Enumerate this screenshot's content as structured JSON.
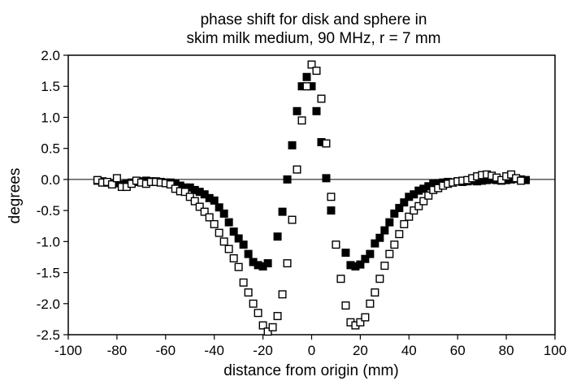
{
  "chart_data": {
    "type": "scatter",
    "title": [
      "phase shift for disk and sphere in",
      "skim milk medium, 90 MHz, r = 7 mm"
    ],
    "xlabel": "distance from origin (mm)",
    "ylabel": "degrees",
    "xlim": [
      -100,
      100
    ],
    "ylim": [
      -2.5,
      2.0
    ],
    "xticks": [
      -100,
      -80,
      -60,
      -40,
      -20,
      0,
      20,
      40,
      60,
      80,
      100
    ],
    "yticks": [
      2.0,
      1.5,
      1.0,
      0.5,
      0.0,
      -0.5,
      -1.0,
      -1.5,
      -2.0,
      -2.5
    ],
    "ytick_labels": [
      "2.0",
      "1.5",
      "1.0",
      "0.5",
      "0.0",
      "-0.5",
      "-1.0",
      "-1.5",
      "-2.0",
      "-2.5"
    ],
    "reference_line_y": 0,
    "grid": false,
    "legend": "none",
    "series": [
      {
        "marker": "filled-square",
        "color": "#000000",
        "points": [
          [
            -88,
            -0.02
          ],
          [
            -86,
            -0.03
          ],
          [
            -84,
            -0.05
          ],
          [
            -82,
            -0.07
          ],
          [
            -80,
            -0.06
          ],
          [
            -78,
            -0.08
          ],
          [
            -76,
            -0.07
          ],
          [
            -74,
            -0.05
          ],
          [
            -72,
            -0.04
          ],
          [
            -70,
            -0.03
          ],
          [
            -68,
            -0.02
          ],
          [
            -66,
            -0.03
          ],
          [
            -64,
            -0.03
          ],
          [
            -62,
            -0.04
          ],
          [
            -60,
            -0.05
          ],
          [
            -58,
            -0.05
          ],
          [
            -56,
            -0.07
          ],
          [
            -54,
            -0.1
          ],
          [
            -52,
            -0.13
          ],
          [
            -50,
            -0.13
          ],
          [
            -48,
            -0.17
          ],
          [
            -46,
            -0.2
          ],
          [
            -44,
            -0.24
          ],
          [
            -42,
            -0.3
          ],
          [
            -40,
            -0.34
          ],
          [
            -38,
            -0.45
          ],
          [
            -36,
            -0.55
          ],
          [
            -34,
            -0.69
          ],
          [
            -32,
            -0.84
          ],
          [
            -30,
            -0.95
          ],
          [
            -28,
            -1.05
          ],
          [
            -26,
            -1.2
          ],
          [
            -24,
            -1.33
          ],
          [
            -22,
            -1.38
          ],
          [
            -20,
            -1.4
          ],
          [
            -18,
            -1.35
          ],
          [
            -14,
            -0.92
          ],
          [
            -12,
            -0.52
          ],
          [
            -10,
            0.0
          ],
          [
            -8,
            0.55
          ],
          [
            -6,
            1.1
          ],
          [
            -4,
            1.5
          ],
          [
            -2,
            1.65
          ],
          [
            0,
            1.5
          ],
          [
            2,
            1.1
          ],
          [
            4,
            0.6
          ],
          [
            6,
            0.02
          ],
          [
            8,
            -0.5
          ],
          [
            14,
            -1.18
          ],
          [
            16,
            -1.38
          ],
          [
            18,
            -1.4
          ],
          [
            20,
            -1.37
          ],
          [
            22,
            -1.28
          ],
          [
            24,
            -1.2
          ],
          [
            26,
            -1.03
          ],
          [
            28,
            -0.94
          ],
          [
            30,
            -0.82
          ],
          [
            32,
            -0.69
          ],
          [
            34,
            -0.55
          ],
          [
            36,
            -0.46
          ],
          [
            38,
            -0.37
          ],
          [
            40,
            -0.28
          ],
          [
            42,
            -0.24
          ],
          [
            44,
            -0.18
          ],
          [
            46,
            -0.15
          ],
          [
            48,
            -0.11
          ],
          [
            50,
            -0.07
          ],
          [
            52,
            -0.06
          ],
          [
            54,
            -0.05
          ],
          [
            56,
            -0.04
          ],
          [
            58,
            -0.05
          ],
          [
            60,
            -0.03
          ],
          [
            62,
            -0.04
          ],
          [
            64,
            -0.03
          ],
          [
            66,
            -0.02
          ],
          [
            68,
            -0.03
          ],
          [
            70,
            -0.02
          ],
          [
            72,
            -0.01
          ],
          [
            74,
            0.0
          ],
          [
            76,
            -0.01
          ],
          [
            78,
            -0.02
          ],
          [
            80,
            -0.01
          ],
          [
            82,
            0.0
          ],
          [
            84,
            0.01
          ],
          [
            86,
            0.0
          ],
          [
            88,
            -0.01
          ]
        ]
      },
      {
        "marker": "open-square",
        "color": "#000000",
        "points": [
          [
            -88,
            -0.01
          ],
          [
            -86,
            -0.05
          ],
          [
            -84,
            -0.04
          ],
          [
            -82,
            -0.08
          ],
          [
            -80,
            0.02
          ],
          [
            -78,
            -0.12
          ],
          [
            -76,
            -0.12
          ],
          [
            -74,
            -0.07
          ],
          [
            -72,
            -0.02
          ],
          [
            -70,
            -0.05
          ],
          [
            -68,
            -0.07
          ],
          [
            -66,
            -0.04
          ],
          [
            -64,
            -0.04
          ],
          [
            -62,
            -0.05
          ],
          [
            -60,
            -0.06
          ],
          [
            -58,
            -0.08
          ],
          [
            -56,
            -0.15
          ],
          [
            -54,
            -0.19
          ],
          [
            -52,
            -0.2
          ],
          [
            -50,
            -0.28
          ],
          [
            -48,
            -0.35
          ],
          [
            -46,
            -0.44
          ],
          [
            -44,
            -0.52
          ],
          [
            -42,
            -0.61
          ],
          [
            -40,
            -0.72
          ],
          [
            -38,
            -0.86
          ],
          [
            -36,
            -1.0
          ],
          [
            -34,
            -1.12
          ],
          [
            -32,
            -1.27
          ],
          [
            -30,
            -1.41
          ],
          [
            -28,
            -1.66
          ],
          [
            -26,
            -1.82
          ],
          [
            -24,
            -2.0
          ],
          [
            -22,
            -2.15
          ],
          [
            -20,
            -2.35
          ],
          [
            -18,
            -2.45
          ],
          [
            -16,
            -2.38
          ],
          [
            -14,
            -2.2
          ],
          [
            -12,
            -1.85
          ],
          [
            -10,
            -1.35
          ],
          [
            -8,
            -0.65
          ],
          [
            -6,
            0.16
          ],
          [
            -4,
            0.95
          ],
          [
            -2,
            1.5
          ],
          [
            0,
            1.85
          ],
          [
            2,
            1.75
          ],
          [
            4,
            1.3
          ],
          [
            6,
            0.58
          ],
          [
            8,
            -0.28
          ],
          [
            10,
            -1.05
          ],
          [
            12,
            -1.6
          ],
          [
            14,
            -2.03
          ],
          [
            16,
            -2.3
          ],
          [
            18,
            -2.35
          ],
          [
            20,
            -2.3
          ],
          [
            22,
            -2.22
          ],
          [
            24,
            -2.0
          ],
          [
            26,
            -1.82
          ],
          [
            28,
            -1.6
          ],
          [
            30,
            -1.39
          ],
          [
            32,
            -1.2
          ],
          [
            34,
            -1.05
          ],
          [
            36,
            -0.88
          ],
          [
            38,
            -0.72
          ],
          [
            40,
            -0.6
          ],
          [
            42,
            -0.5
          ],
          [
            44,
            -0.43
          ],
          [
            46,
            -0.35
          ],
          [
            48,
            -0.26
          ],
          [
            50,
            -0.17
          ],
          [
            52,
            -0.14
          ],
          [
            54,
            -0.1
          ],
          [
            56,
            -0.07
          ],
          [
            58,
            -0.05
          ],
          [
            60,
            -0.03
          ],
          [
            62,
            -0.02
          ],
          [
            64,
            -0.01
          ],
          [
            66,
            0.02
          ],
          [
            68,
            0.05
          ],
          [
            70,
            0.07
          ],
          [
            72,
            0.08
          ],
          [
            74,
            0.06
          ],
          [
            76,
            0.03
          ],
          [
            78,
            -0.01
          ],
          [
            80,
            0.05
          ],
          [
            82,
            0.08
          ],
          [
            84,
            0.02
          ],
          [
            86,
            -0.02
          ]
        ]
      }
    ]
  }
}
